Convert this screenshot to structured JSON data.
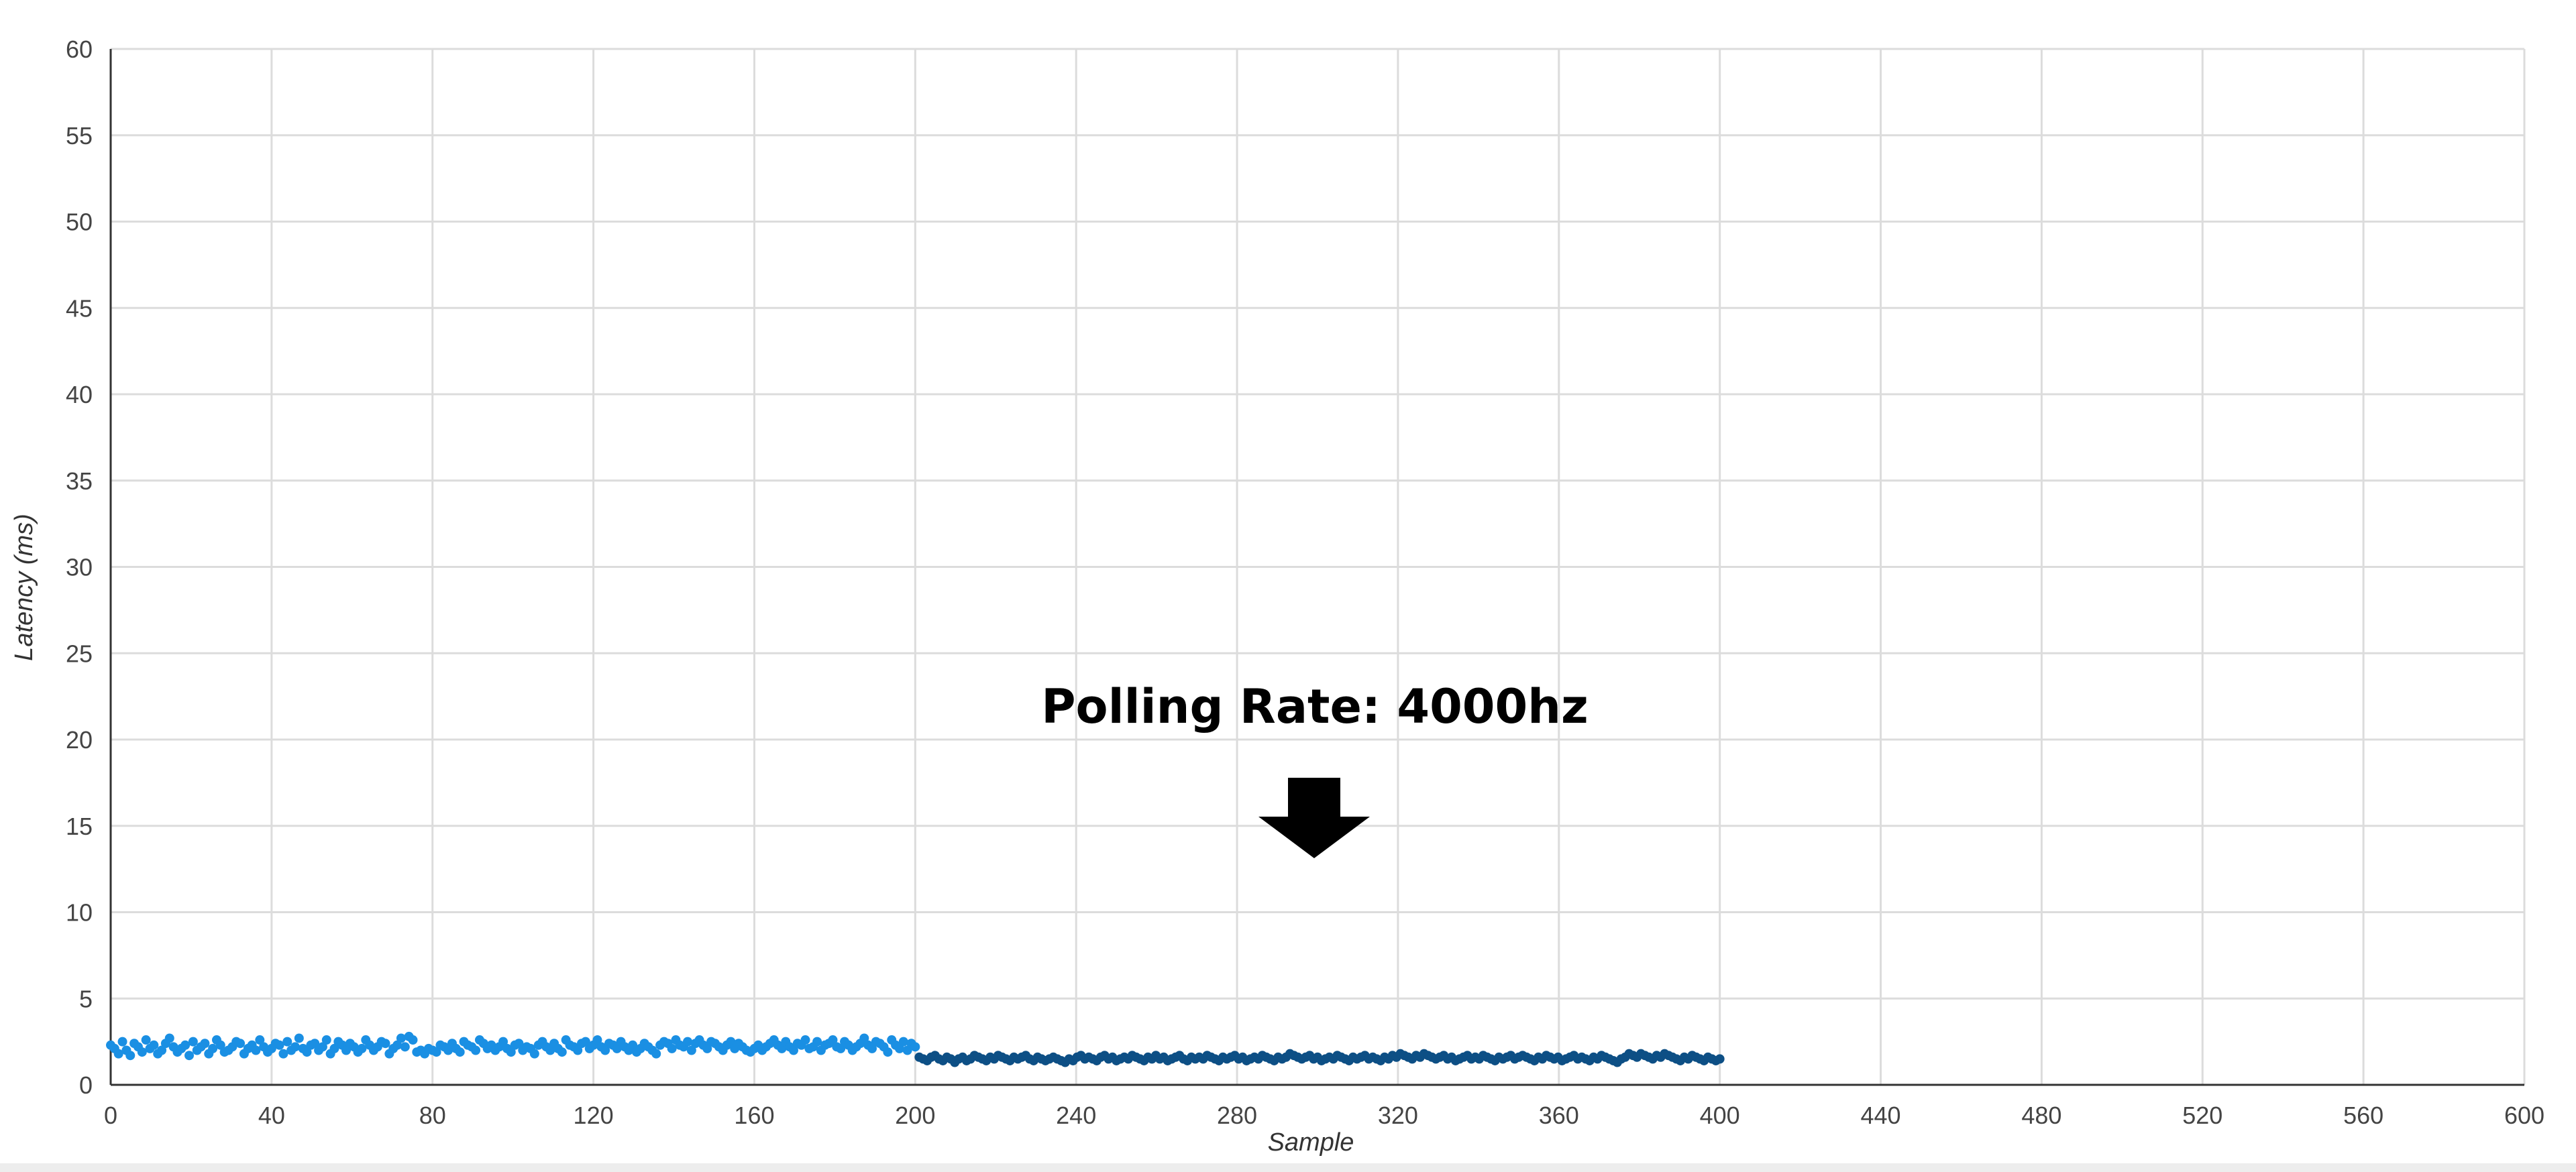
{
  "chart_data": {
    "type": "scatter",
    "title": "",
    "xlabel": "Sample",
    "ylabel": "Latency (ms)",
    "xlim": [
      0,
      600
    ],
    "ylim": [
      0,
      60
    ],
    "x_ticks": [
      0,
      40,
      80,
      120,
      160,
      200,
      240,
      280,
      320,
      360,
      400,
      440,
      480,
      520,
      560,
      600
    ],
    "y_ticks": [
      0,
      5,
      10,
      15,
      20,
      25,
      30,
      35,
      40,
      45,
      50,
      55,
      60
    ],
    "grid": true,
    "legend": "none",
    "annotation": {
      "text": "Polling Rate: 4000hz",
      "points_to_sample": 300,
      "arrow": "down"
    },
    "series": [
      {
        "color": "#1a8fe3",
        "x_range": [
          0,
          200
        ],
        "values": [
          2.3,
          2.1,
          1.8,
          2.5,
          2.0,
          1.7,
          2.4,
          2.2,
          1.9,
          2.6,
          2.1,
          2.3,
          1.8,
          2.0,
          2.4,
          2.7,
          2.2,
          1.9,
          2.1,
          2.3,
          1.7,
          2.5,
          2.0,
          2.2,
          2.4,
          1.8,
          2.1,
          2.6,
          2.3,
          1.9,
          2.0,
          2.2,
          2.5,
          2.4,
          1.8,
          2.1,
          2.3,
          2.0,
          2.6,
          2.2,
          1.9,
          2.1,
          2.4,
          2.3,
          1.8,
          2.5,
          2.0,
          2.2,
          2.7,
          2.1,
          1.9,
          2.3,
          2.4,
          2.0,
          2.2,
          2.6,
          1.8,
          2.1,
          2.5,
          2.3,
          2.0,
          2.4,
          2.2,
          1.9,
          2.1,
          2.6,
          2.3,
          2.0,
          2.2,
          2.5,
          2.4,
          1.8,
          2.1,
          2.3,
          2.7,
          2.2,
          2.8,
          2.6,
          1.9,
          2.0,
          1.8,
          2.1,
          2.0,
          1.9,
          2.3,
          2.2,
          2.0,
          2.4,
          2.1,
          1.9,
          2.5,
          2.3,
          2.2,
          2.0,
          2.6,
          2.4,
          2.1,
          2.3,
          2.0,
          2.2,
          2.5,
          2.1,
          1.9,
          2.3,
          2.4,
          2.0,
          2.2,
          2.1,
          1.8,
          2.3,
          2.5,
          2.2,
          2.0,
          2.4,
          2.1,
          1.9,
          2.6,
          2.3,
          2.2,
          2.0,
          2.4,
          2.5,
          2.1,
          2.3,
          2.6,
          2.2,
          2.0,
          2.4,
          2.3,
          2.1,
          2.5,
          2.2,
          2.0,
          2.3,
          1.9,
          2.1,
          2.4,
          2.2,
          2.0,
          1.8,
          2.3,
          2.5,
          2.4,
          2.1,
          2.6,
          2.3,
          2.2,
          2.5,
          2.0,
          2.4,
          2.6,
          2.3,
          2.1,
          2.5,
          2.4,
          2.2,
          2.0,
          2.3,
          2.5,
          2.1,
          2.4,
          2.2,
          2.0,
          1.9,
          2.1,
          2.3,
          2.0,
          2.2,
          2.4,
          2.6,
          2.3,
          2.1,
          2.5,
          2.2,
          2.0,
          2.4,
          2.3,
          2.6,
          2.1,
          2.2,
          2.5,
          2.0,
          2.3,
          2.4,
          2.6,
          2.2,
          2.1,
          2.5,
          2.3,
          2.0,
          2.2,
          2.4,
          2.7,
          2.3,
          2.1,
          2.5,
          2.4,
          2.2,
          1.9,
          2.6,
          2.3,
          2.1,
          2.5,
          2.0,
          2.4,
          2.2
        ]
      },
      {
        "color": "#0d4f85",
        "x_range": [
          201,
          400
        ],
        "values": [
          1.6,
          1.5,
          1.4,
          1.6,
          1.7,
          1.5,
          1.4,
          1.6,
          1.5,
          1.3,
          1.5,
          1.6,
          1.4,
          1.5,
          1.7,
          1.6,
          1.5,
          1.4,
          1.6,
          1.5,
          1.7,
          1.6,
          1.5,
          1.4,
          1.6,
          1.5,
          1.6,
          1.7,
          1.5,
          1.4,
          1.6,
          1.5,
          1.4,
          1.5,
          1.6,
          1.5,
          1.4,
          1.3,
          1.5,
          1.4,
          1.6,
          1.7,
          1.5,
          1.6,
          1.5,
          1.4,
          1.6,
          1.7,
          1.5,
          1.6,
          1.4,
          1.5,
          1.6,
          1.5,
          1.7,
          1.6,
          1.5,
          1.4,
          1.6,
          1.5,
          1.7,
          1.5,
          1.6,
          1.4,
          1.5,
          1.6,
          1.7,
          1.5,
          1.4,
          1.6,
          1.5,
          1.6,
          1.5,
          1.7,
          1.6,
          1.5,
          1.4,
          1.6,
          1.5,
          1.6,
          1.7,
          1.5,
          1.6,
          1.4,
          1.5,
          1.6,
          1.5,
          1.7,
          1.6,
          1.5,
          1.4,
          1.6,
          1.5,
          1.6,
          1.8,
          1.7,
          1.6,
          1.5,
          1.6,
          1.7,
          1.5,
          1.6,
          1.4,
          1.5,
          1.6,
          1.5,
          1.7,
          1.6,
          1.5,
          1.4,
          1.6,
          1.5,
          1.6,
          1.7,
          1.5,
          1.6,
          1.5,
          1.4,
          1.6,
          1.5,
          1.7,
          1.6,
          1.8,
          1.7,
          1.6,
          1.5,
          1.7,
          1.6,
          1.8,
          1.7,
          1.6,
          1.5,
          1.6,
          1.7,
          1.5,
          1.6,
          1.4,
          1.5,
          1.6,
          1.7,
          1.5,
          1.6,
          1.5,
          1.7,
          1.6,
          1.5,
          1.4,
          1.6,
          1.5,
          1.6,
          1.7,
          1.5,
          1.6,
          1.7,
          1.6,
          1.5,
          1.4,
          1.6,
          1.5,
          1.7,
          1.6,
          1.5,
          1.6,
          1.4,
          1.5,
          1.6,
          1.7,
          1.5,
          1.6,
          1.5,
          1.4,
          1.6,
          1.5,
          1.7,
          1.6,
          1.5,
          1.4,
          1.3,
          1.5,
          1.6,
          1.8,
          1.7,
          1.6,
          1.8,
          1.7,
          1.6,
          1.5,
          1.7,
          1.6,
          1.8,
          1.7,
          1.6,
          1.5,
          1.4,
          1.6,
          1.5,
          1.7,
          1.6,
          1.5,
          1.4,
          1.6,
          1.5,
          1.4,
          1.5
        ]
      }
    ]
  }
}
